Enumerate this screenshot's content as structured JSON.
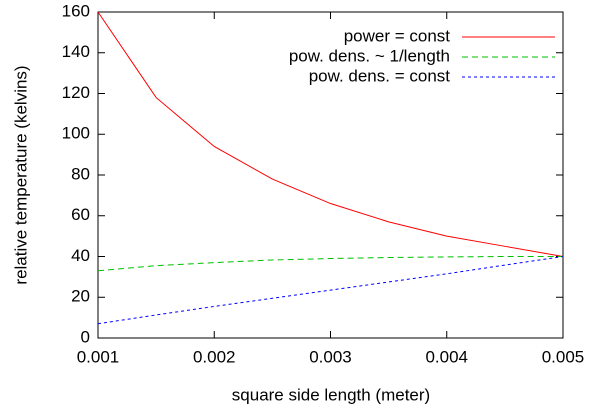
{
  "chart_data": {
    "type": "line",
    "xlabel": "square side length (meter)",
    "ylabel": "relative temperature (kelvins)",
    "x": [
      0.001,
      0.0015,
      0.002,
      0.0025,
      0.003,
      0.0035,
      0.004,
      0.0045,
      0.005
    ],
    "series": [
      {
        "name": "power = const",
        "color": "#ff0000",
        "dash": "none",
        "values": [
          160,
          118,
          94,
          78,
          66,
          57,
          50,
          45,
          40
        ]
      },
      {
        "name": "pow. dens. ~ 1/length",
        "color": "#00c000",
        "dash": "6 4",
        "values": [
          33,
          35.5,
          37,
          38.3,
          39,
          39.5,
          39.8,
          40,
          40
        ]
      },
      {
        "name": "pow. dens. = const",
        "color": "#0000ff",
        "dash": "3 3",
        "values": [
          7,
          11.3,
          15.5,
          19.5,
          23.5,
          27.5,
          31.5,
          35.8,
          40
        ]
      }
    ],
    "xlim": [
      0.001,
      0.005
    ],
    "xticks": [
      0.001,
      0.002,
      0.003,
      0.004,
      0.005
    ],
    "ylim": [
      0,
      160
    ],
    "yticks": [
      0,
      20,
      40,
      60,
      80,
      100,
      120,
      140,
      160
    ],
    "legend": "top-right"
  }
}
